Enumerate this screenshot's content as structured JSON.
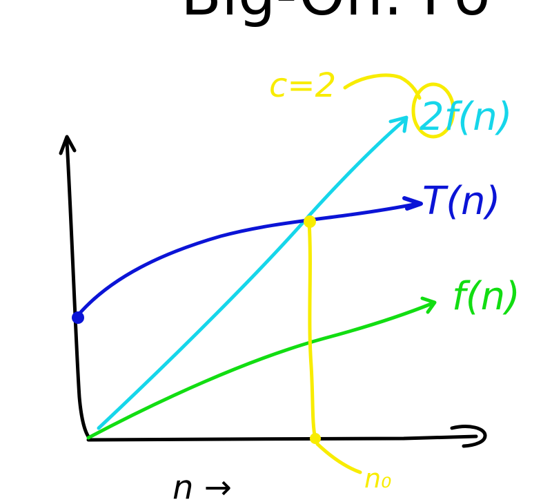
{
  "slide": {
    "title": "Big-Oh: Fo"
  },
  "diagram": {
    "labels": {
      "constant": "c=2",
      "scaled_function": "2f(n)",
      "t_function": "T(n)",
      "f_function": "f(n)",
      "threshold": "n₀",
      "x_axis": "n →"
    },
    "colors": {
      "axes": "#000000",
      "t_curve": "#0b14d6",
      "scaled_curve": "#16d6ea",
      "f_curve": "#12dd12",
      "annotation": "#f8ec00"
    }
  }
}
